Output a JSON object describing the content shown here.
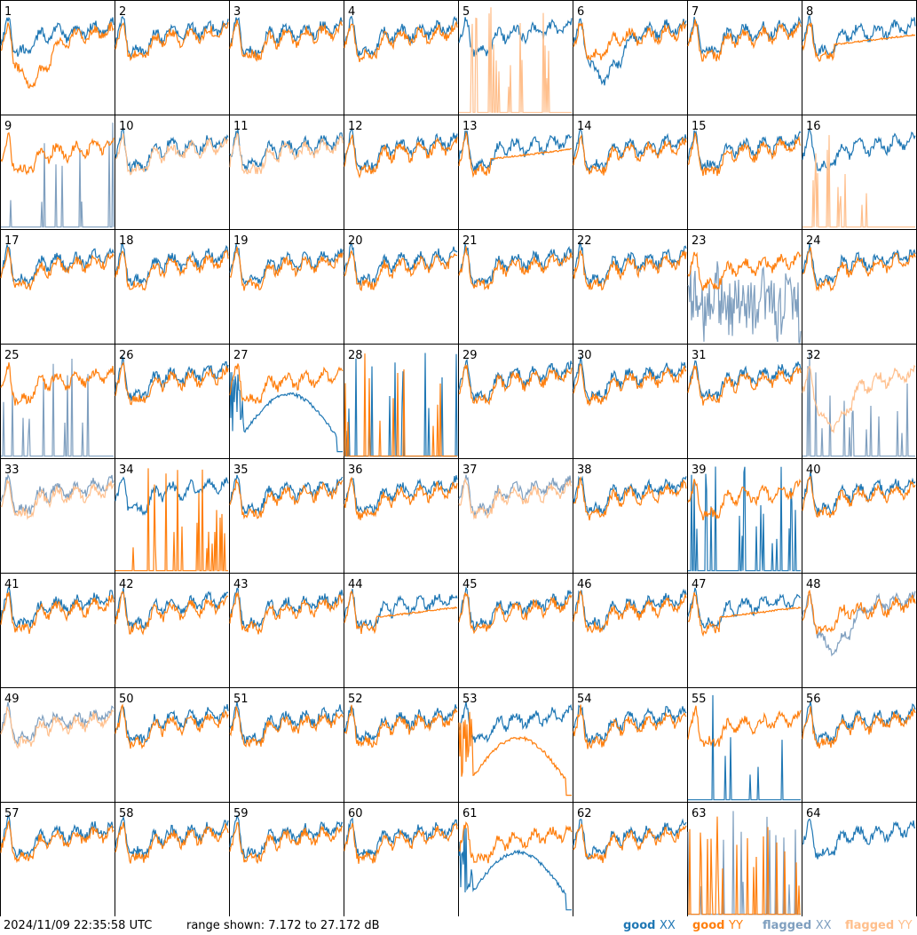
{
  "footer": {
    "timestamp": "2024/11/09 22:35:58 UTC",
    "range_text": "range shown: 7.172 to 27.172 dB"
  },
  "legend": [
    {
      "word": "good",
      "pol": "XX",
      "color": "#1f77b4"
    },
    {
      "word": "good",
      "pol": "YY",
      "color": "#ff7f0e"
    },
    {
      "word": "flagged",
      "pol": "XX",
      "color": "#7f9fbf"
    },
    {
      "word": "flagged",
      "pol": "YY",
      "color": "#ffbf8c"
    }
  ],
  "colors": {
    "good_xx": "#1f77b4",
    "good_yy": "#ff7f0e",
    "flagged_xx": "#7f9fbf",
    "flagged_yy": "#ffbf8c"
  },
  "chart_data": {
    "type": "line",
    "layout": "small-multiples 8x8 grid",
    "ylim_db": [
      7.172,
      27.172
    ],
    "panels": [
      {
        "id": "1",
        "xx": "good",
        "yy": "good",
        "xx_shape": "normal",
        "yy_shape": "dip"
      },
      {
        "id": "2",
        "xx": "good",
        "yy": "good",
        "xx_shape": "normal",
        "yy_shape": "normal"
      },
      {
        "id": "3",
        "xx": "good",
        "yy": "good",
        "xx_shape": "normal",
        "yy_shape": "normal"
      },
      {
        "id": "4",
        "xx": "good",
        "yy": "good",
        "xx_shape": "normal",
        "yy_shape": "normal"
      },
      {
        "id": "5",
        "xx": "good",
        "yy": "flagged",
        "xx_shape": "normal",
        "yy_shape": "spikes"
      },
      {
        "id": "6",
        "xx": "good",
        "yy": "good",
        "xx_shape": "dip",
        "yy_shape": "normal"
      },
      {
        "id": "7",
        "xx": "good",
        "yy": "good",
        "xx_shape": "normal",
        "yy_shape": "normal"
      },
      {
        "id": "8",
        "xx": "good",
        "yy": "good",
        "xx_shape": "normal",
        "yy_shape": "smooth"
      },
      {
        "id": "9",
        "xx": "flagged",
        "yy": "good",
        "xx_shape": "spikes",
        "yy_shape": "normal"
      },
      {
        "id": "10",
        "xx": "good",
        "yy": "flagged",
        "xx_shape": "normal",
        "yy_shape": "normal"
      },
      {
        "id": "11",
        "xx": "good",
        "yy": "flagged",
        "xx_shape": "normal",
        "yy_shape": "normal"
      },
      {
        "id": "12",
        "xx": "good",
        "yy": "good",
        "xx_shape": "normal",
        "yy_shape": "normal"
      },
      {
        "id": "13",
        "xx": "good",
        "yy": "good",
        "xx_shape": "normal",
        "yy_shape": "smooth"
      },
      {
        "id": "14",
        "xx": "good",
        "yy": "good",
        "xx_shape": "normal",
        "yy_shape": "normal"
      },
      {
        "id": "15",
        "xx": "good",
        "yy": "good",
        "xx_shape": "normal",
        "yy_shape": "normal"
      },
      {
        "id": "16",
        "xx": "good",
        "yy": "flagged",
        "xx_shape": "normal",
        "yy_shape": "spikes"
      },
      {
        "id": "17",
        "xx": "good",
        "yy": "good",
        "xx_shape": "normal",
        "yy_shape": "normal"
      },
      {
        "id": "18",
        "xx": "good",
        "yy": "good",
        "xx_shape": "normal",
        "yy_shape": "normal"
      },
      {
        "id": "19",
        "xx": "good",
        "yy": "good",
        "xx_shape": "normal",
        "yy_shape": "normal"
      },
      {
        "id": "20",
        "xx": "good",
        "yy": "good",
        "xx_shape": "normal",
        "yy_shape": "normal"
      },
      {
        "id": "21",
        "xx": "good",
        "yy": "good",
        "xx_shape": "normal",
        "yy_shape": "normal"
      },
      {
        "id": "22",
        "xx": "good",
        "yy": "good",
        "xx_shape": "normal",
        "yy_shape": "normal"
      },
      {
        "id": "23",
        "xx": "flagged",
        "yy": "good",
        "xx_shape": "noisy",
        "yy_shape": "normal"
      },
      {
        "id": "24",
        "xx": "good",
        "yy": "good",
        "xx_shape": "normal",
        "yy_shape": "normal"
      },
      {
        "id": "25",
        "xx": "flagged",
        "yy": "good",
        "xx_shape": "spikes",
        "yy_shape": "normal"
      },
      {
        "id": "26",
        "xx": "good",
        "yy": "good",
        "xx_shape": "normal",
        "yy_shape": "normal"
      },
      {
        "id": "27",
        "xx": "good",
        "yy": "good",
        "xx_shape": "hump",
        "yy_shape": "normal"
      },
      {
        "id": "28",
        "xx": "good",
        "yy": "good",
        "xx_shape": "spikes",
        "yy_shape": "spikes"
      },
      {
        "id": "29",
        "xx": "good",
        "yy": "good",
        "xx_shape": "normal",
        "yy_shape": "normal"
      },
      {
        "id": "30",
        "xx": "good",
        "yy": "good",
        "xx_shape": "normal",
        "yy_shape": "normal"
      },
      {
        "id": "31",
        "xx": "good",
        "yy": "good",
        "xx_shape": "normal",
        "yy_shape": "normal"
      },
      {
        "id": "32",
        "xx": "flagged",
        "yy": "flagged",
        "xx_shape": "spikes",
        "yy_shape": "dip"
      },
      {
        "id": "33",
        "xx": "flagged",
        "yy": "flagged",
        "xx_shape": "normal",
        "yy_shape": "normal"
      },
      {
        "id": "34",
        "xx": "good",
        "yy": "good",
        "xx_shape": "normal",
        "yy_shape": "spikes"
      },
      {
        "id": "35",
        "xx": "good",
        "yy": "good",
        "xx_shape": "normal",
        "yy_shape": "normal"
      },
      {
        "id": "36",
        "xx": "good",
        "yy": "good",
        "xx_shape": "normal",
        "yy_shape": "normal"
      },
      {
        "id": "37",
        "xx": "flagged",
        "yy": "flagged",
        "xx_shape": "normal",
        "yy_shape": "normal"
      },
      {
        "id": "38",
        "xx": "good",
        "yy": "good",
        "xx_shape": "normal",
        "yy_shape": "normal"
      },
      {
        "id": "39",
        "xx": "good",
        "yy": "good",
        "xx_shape": "spikes",
        "yy_shape": "normal"
      },
      {
        "id": "40",
        "xx": "good",
        "yy": "good",
        "xx_shape": "normal",
        "yy_shape": "normal"
      },
      {
        "id": "41",
        "xx": "good",
        "yy": "good",
        "xx_shape": "normal",
        "yy_shape": "normal"
      },
      {
        "id": "42",
        "xx": "good",
        "yy": "good",
        "xx_shape": "normal",
        "yy_shape": "normal"
      },
      {
        "id": "43",
        "xx": "good",
        "yy": "good",
        "xx_shape": "normal",
        "yy_shape": "normal"
      },
      {
        "id": "44",
        "xx": "good",
        "yy": "good",
        "xx_shape": "normal",
        "yy_shape": "smooth"
      },
      {
        "id": "45",
        "xx": "good",
        "yy": "good",
        "xx_shape": "normal",
        "yy_shape": "normal"
      },
      {
        "id": "46",
        "xx": "good",
        "yy": "good",
        "xx_shape": "normal",
        "yy_shape": "normal"
      },
      {
        "id": "47",
        "xx": "good",
        "yy": "good",
        "xx_shape": "normal",
        "yy_shape": "smooth"
      },
      {
        "id": "48",
        "xx": "flagged",
        "yy": "good",
        "xx_shape": "dip",
        "yy_shape": "normal"
      },
      {
        "id": "49",
        "xx": "flagged",
        "yy": "flagged",
        "xx_shape": "normal",
        "yy_shape": "normal"
      },
      {
        "id": "50",
        "xx": "good",
        "yy": "good",
        "xx_shape": "normal",
        "yy_shape": "normal"
      },
      {
        "id": "51",
        "xx": "good",
        "yy": "good",
        "xx_shape": "normal",
        "yy_shape": "normal"
      },
      {
        "id": "52",
        "xx": "good",
        "yy": "good",
        "xx_shape": "normal",
        "yy_shape": "normal"
      },
      {
        "id": "53",
        "xx": "good",
        "yy": "good",
        "xx_shape": "normal",
        "yy_shape": "hump"
      },
      {
        "id": "54",
        "xx": "good",
        "yy": "good",
        "xx_shape": "normal",
        "yy_shape": "normal"
      },
      {
        "id": "55",
        "xx": "good",
        "yy": "good",
        "xx_shape": "spikes",
        "yy_shape": "normal"
      },
      {
        "id": "56",
        "xx": "good",
        "yy": "good",
        "xx_shape": "normal",
        "yy_shape": "normal"
      },
      {
        "id": "57",
        "xx": "good",
        "yy": "good",
        "xx_shape": "normal",
        "yy_shape": "normal"
      },
      {
        "id": "58",
        "xx": "good",
        "yy": "good",
        "xx_shape": "normal",
        "yy_shape": "normal"
      },
      {
        "id": "59",
        "xx": "good",
        "yy": "good",
        "xx_shape": "normal",
        "yy_shape": "normal"
      },
      {
        "id": "60",
        "xx": "good",
        "yy": "good",
        "xx_shape": "normal",
        "yy_shape": "normal"
      },
      {
        "id": "61",
        "xx": "good",
        "yy": "good",
        "xx_shape": "hump",
        "yy_shape": "normal"
      },
      {
        "id": "62",
        "xx": "good",
        "yy": "good",
        "xx_shape": "normal",
        "yy_shape": "normal"
      },
      {
        "id": "63",
        "xx": "flagged",
        "yy": "good",
        "xx_shape": "spikes",
        "yy_shape": "spikes"
      },
      {
        "id": "64",
        "xx": "good",
        "yy": "none",
        "xx_shape": "normal",
        "yy_shape": "none"
      }
    ]
  }
}
